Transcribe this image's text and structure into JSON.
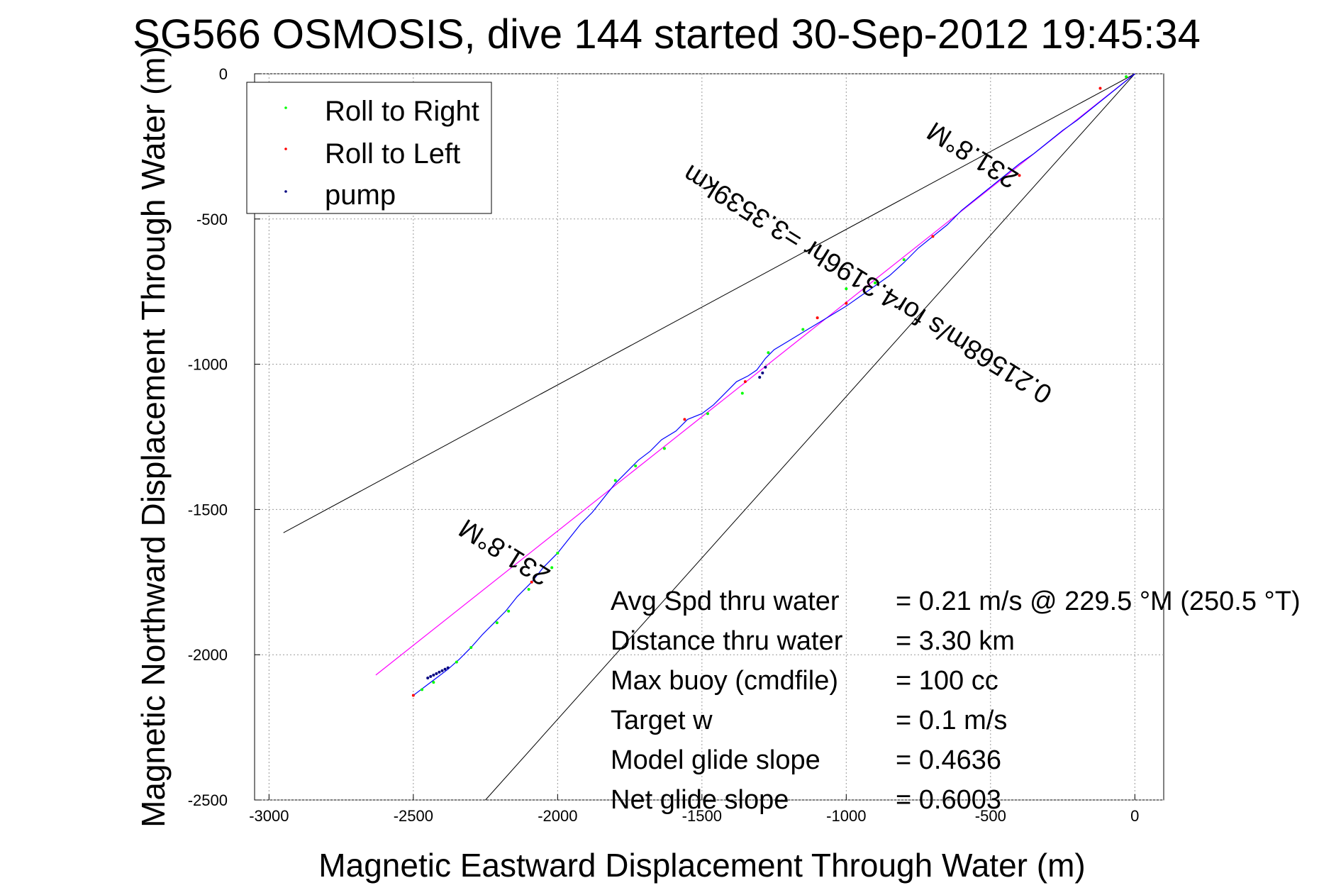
{
  "chart_data": {
    "type": "line",
    "title": "SG566 OSMOSIS, dive 144 started 30-Sep-2012 19:45:34",
    "xlabel": "Magnetic Eastward Displacement Through Water (m)",
    "ylabel": "Magnetic Northward Displacement Through Water (m)",
    "xlim": [
      -3050,
      100
    ],
    "ylim": [
      -2500,
      0
    ],
    "xticks": [
      -3000,
      -2500,
      -2000,
      -1500,
      -1000,
      -500,
      0
    ],
    "yticks": [
      0,
      -500,
      -1000,
      -1500,
      -2000,
      -2500
    ],
    "xtick_labels": [
      "-3000",
      "-2500",
      "-2000",
      "-1500",
      "-1000",
      "-500",
      "0"
    ],
    "ytick_labels": [
      "0",
      "-500",
      "-1000",
      "-1500",
      "-2000",
      "-2500"
    ],
    "grid": true,
    "legend_position": "top-left",
    "legend": [
      {
        "label": "Roll to Right",
        "color": "#00ff00"
      },
      {
        "label": "Roll to Left",
        "color": "#ff0000"
      },
      {
        "label": "pump",
        "color": "#000080"
      }
    ],
    "track": {
      "color": "#0000ff",
      "x": [
        -2500,
        -2460,
        -2420,
        -2380,
        -2340,
        -2300,
        -2260,
        -2220,
        -2180,
        -2140,
        -2090,
        -2050,
        -2000,
        -1960,
        -1920,
        -1880,
        -1840,
        -1800,
        -1760,
        -1720,
        -1680,
        -1640,
        -1590,
        -1550,
        -1500,
        -1460,
        -1420,
        -1380,
        -1340,
        -1310,
        -1280,
        -1250,
        -1200,
        -1150,
        -1100,
        -1050,
        -1000,
        -950,
        -900,
        -850,
        -800,
        -750,
        -700,
        -650,
        -600,
        -550,
        -500,
        -450,
        -400,
        -350,
        -300,
        -250,
        -200,
        -150,
        -100,
        -50,
        0
      ],
      "y": [
        -2140,
        -2110,
        -2080,
        -2050,
        -2015,
        -1975,
        -1930,
        -1890,
        -1850,
        -1800,
        -1750,
        -1700,
        -1650,
        -1600,
        -1550,
        -1510,
        -1460,
        -1410,
        -1370,
        -1330,
        -1300,
        -1260,
        -1230,
        -1190,
        -1170,
        -1140,
        -1100,
        -1060,
        -1040,
        -1020,
        -980,
        -950,
        -920,
        -890,
        -860,
        -830,
        -800,
        -765,
        -730,
        -695,
        -650,
        -600,
        -560,
        -520,
        -470,
        -430,
        -390,
        -350,
        -310,
        -275,
        -235,
        -195,
        -160,
        -120,
        -80,
        -40,
        0
      ]
    },
    "heading_line": {
      "color": "#ff00ff",
      "x": [
        -2630,
        0
      ],
      "y": [
        -2070,
        0
      ]
    },
    "cone_lines": [
      {
        "color": "#000000",
        "x": [
          -2950,
          0
        ],
        "y": [
          -1580,
          0
        ]
      },
      {
        "color": "#000000",
        "x": [
          -2250,
          0
        ],
        "y": [
          -2500,
          0
        ]
      }
    ],
    "roll_right_points": {
      "x": [
        -2470,
        -2430,
        -2350,
        -2300,
        -2210,
        -2170,
        -2100,
        -2020,
        -2000,
        -1800,
        -1730,
        -1630,
        -1480,
        -1360,
        -1270,
        -1150,
        -1000,
        -900,
        -800,
        -30
      ],
      "y": [
        -2120,
        -2095,
        -2025,
        -1975,
        -1890,
        -1850,
        -1775,
        -1700,
        -1650,
        -1400,
        -1350,
        -1290,
        -1170,
        -1100,
        -960,
        -880,
        -740,
        -720,
        -640,
        -10
      ]
    },
    "roll_left_points": {
      "x": [
        -2500,
        -2090,
        -1560,
        -1350,
        -1100,
        -1000,
        -700,
        -400,
        -120
      ],
      "y": [
        -2140,
        -1750,
        -1190,
        -1060,
        -840,
        -790,
        -560,
        -350,
        -50
      ]
    },
    "pump_points": {
      "x": [
        -2450,
        -2440,
        -2430,
        -2420,
        -2410,
        -2400,
        -2390,
        -2380,
        -1300,
        -1290,
        -1280
      ],
      "y": [
        -2080,
        -2075,
        -2070,
        -2065,
        -2060,
        -2055,
        -2050,
        -2045,
        -1045,
        -1030,
        -1010
      ]
    },
    "annotations": [
      {
        "text": "231.8°M"
      },
      {
        "text": "0.21568m/s for4.3196hr =3.3539km"
      },
      {
        "text": "231.8°M"
      }
    ],
    "stats": [
      {
        "label": "Avg Spd thru water",
        "value": "=  0.21 m/s @ 229.5 °M (250.5 °T)"
      },
      {
        "label": "Distance thru water",
        "value": "=  3.30 km"
      },
      {
        "label": "Max buoy (cmdfile)",
        "value": "= 100 cc"
      },
      {
        "label": "Target w",
        "value": "= 0.1 m/s"
      },
      {
        "label": "Model glide slope",
        "value": "= 0.4636"
      },
      {
        "label": "Net glide slope",
        "value": "= 0.6003"
      }
    ]
  }
}
